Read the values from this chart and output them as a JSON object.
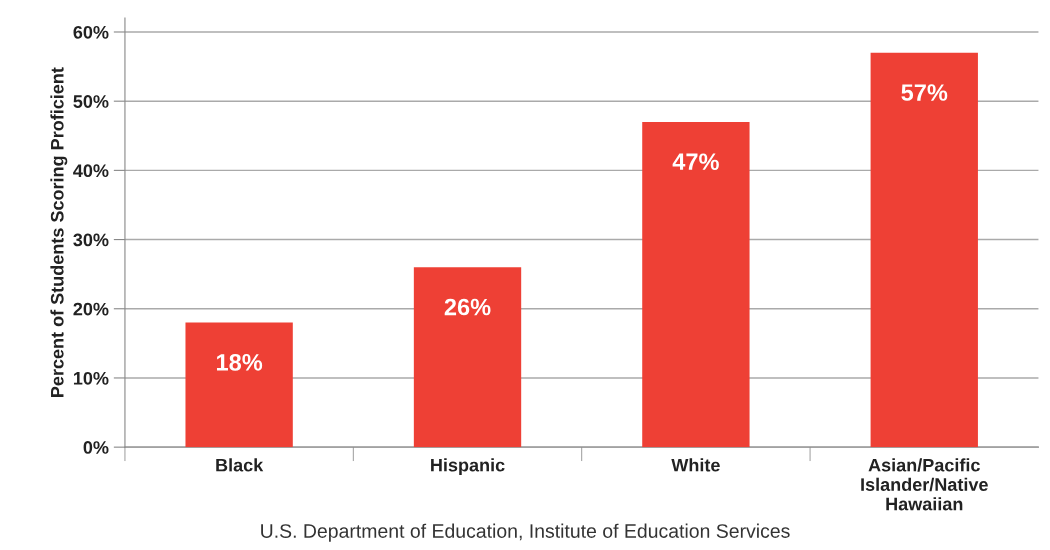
{
  "chart_data": {
    "type": "bar",
    "ylabel": "Percent of Students Scoring Proficient",
    "categories": [
      "Black",
      "Hispanic",
      "White",
      "Asian/Pacific\nIslander/Native\nHawaiian"
    ],
    "values": [
      18,
      26,
      47,
      57
    ],
    "color": "#ee4035",
    "value_labels": [
      "18%",
      "26%",
      "47%",
      "57%"
    ],
    "ylim": [
      0,
      62
    ],
    "yticks": [
      {
        "value": 0,
        "label": "0%"
      },
      {
        "value": 10,
        "label": "10%"
      },
      {
        "value": 20,
        "label": "20%"
      },
      {
        "value": 30,
        "label": "30%"
      },
      {
        "value": 40,
        "label": "40%"
      },
      {
        "value": 50,
        "label": "50%"
      },
      {
        "value": 60,
        "label": "60%"
      }
    ],
    "grid": "y",
    "annotations": [
      "U.S. Department of Education, Institute of Education Services"
    ]
  }
}
